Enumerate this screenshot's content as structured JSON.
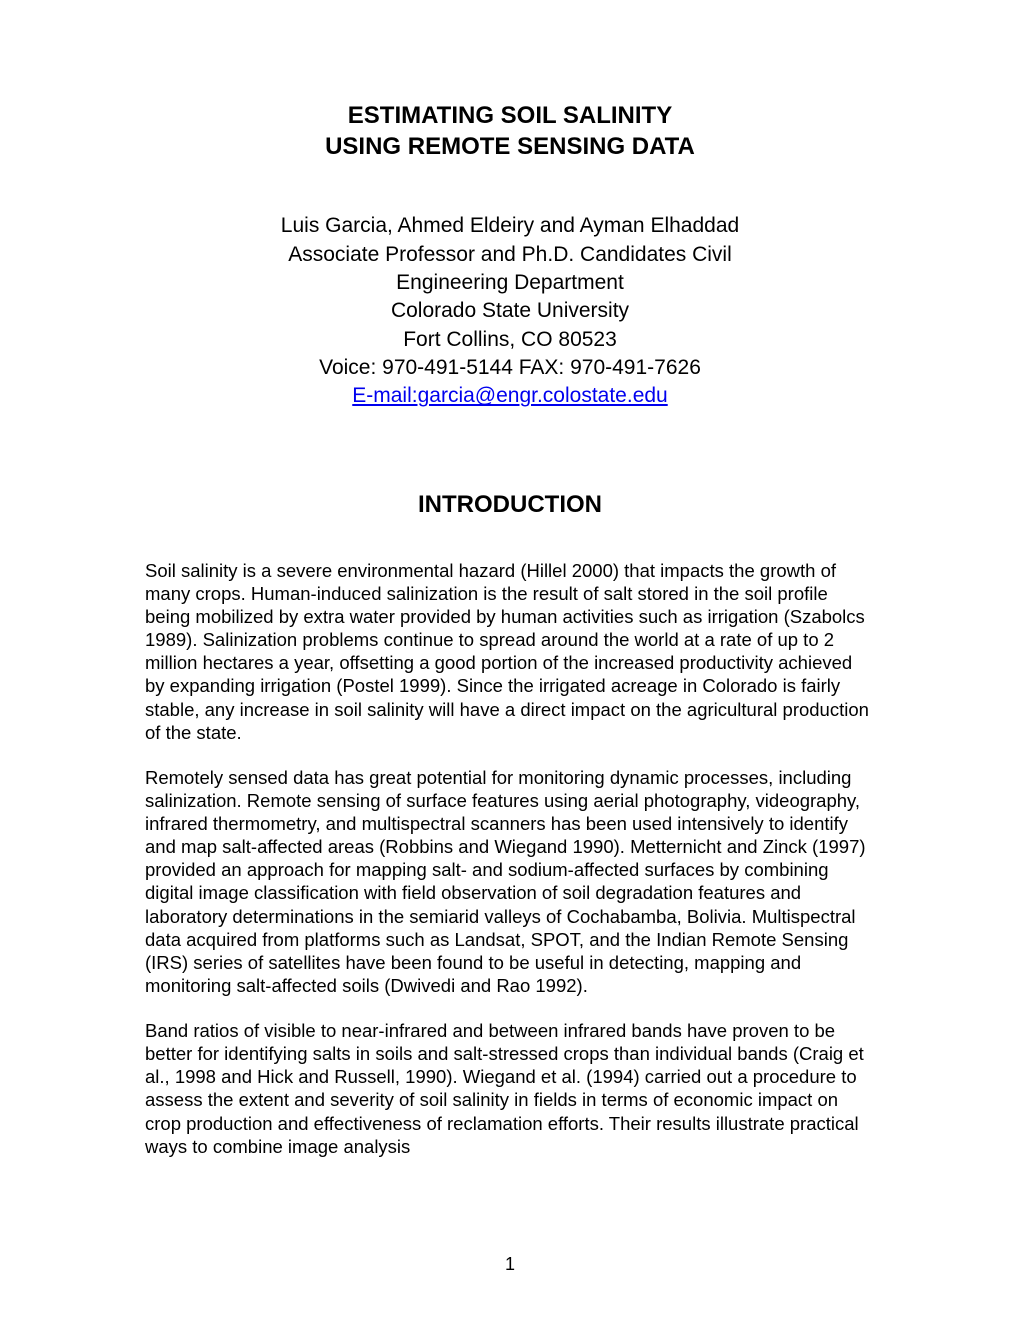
{
  "title": {
    "line1": "ESTIMATING SOIL SALINITY",
    "line2": "USING REMOTE SENSING DATA"
  },
  "authors": {
    "names": "Luis Garcia, Ahmed Eldeiry and Ayman Elhaddad",
    "affiliation1": "Associate Professor and Ph.D. Candidates Civil",
    "affiliation2": "Engineering Department",
    "university": "Colorado State University",
    "location": "Fort Collins, CO 80523",
    "contact": "Voice: 970-491-5144 FAX: 970-491-7626",
    "email": "E-mail:garcia@engr.colostate.edu"
  },
  "section": {
    "heading": "INTRODUCTION",
    "paragraph1": "Soil salinity is a severe environmental hazard (Hillel 2000) that impacts the growth of many crops. Human-induced salinization is the result of salt stored in the soil profile being mobilized by extra water provided by human activities such as irrigation (Szabolcs 1989). Salinization problems continue to spread around the world at a rate of up to 2 million hectares a year, offsetting a good portion of the increased productivity achieved by expanding irrigation (Postel 1999). Since the irrigated acreage in Colorado is fairly stable, any increase in soil salinity will have a direct impact on the agricultural production of the state.",
    "paragraph2": "Remotely sensed data has great potential for monitoring dynamic processes, including salinization. Remote sensing of surface features using aerial photography, videography, infrared thermometry, and multispectral scanners has been used intensively to identify and map salt-affected areas (Robbins and Wiegand 1990). Metternicht and Zinck (1997) provided an approach for mapping salt- and sodium-affected surfaces by combining digital image classification with field observation of soil degradation features and laboratory determinations in the semiarid valleys of Cochabamba, Bolivia. Multispectral data acquired from platforms such as Landsat, SPOT, and the Indian Remote Sensing (IRS) series of satellites have been found to be useful in detecting, mapping and monitoring salt-affected soils (Dwivedi and Rao 1992).",
    "paragraph3": "Band ratios of visible to near-infrared and between infrared bands have proven to be better for identifying salts in soils and salt-stressed crops than individual bands (Craig et al., 1998 and Hick and Russell, 1990). Wiegand et al. (1994) carried out a procedure to assess the extent and severity of soil salinity in fields in terms of economic impact on crop production and effectiveness of reclamation efforts. Their results illustrate practical ways to combine image analysis"
  },
  "page_number": "1",
  "colors": {
    "background": "#ffffff",
    "text": "#000000",
    "link": "#0000ee"
  },
  "typography": {
    "title_fontsize": 24,
    "title_fontweight": "bold",
    "author_fontsize": 21,
    "body_fontsize": 18.5,
    "heading_fontsize": 24,
    "font_family": "Arial"
  }
}
